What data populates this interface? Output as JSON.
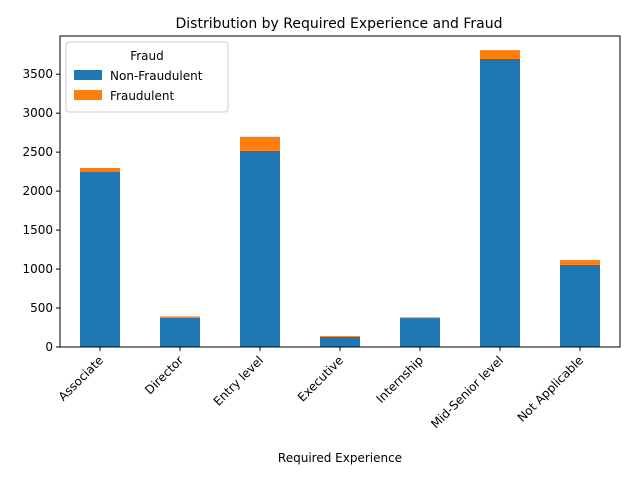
{
  "chart_data": {
    "type": "bar",
    "stacked": true,
    "title": "Distribution by Required Experience and Fraud",
    "xlabel": "Required Experience",
    "ylabel": "",
    "categories": [
      "Associate",
      "Director",
      "Entry level",
      "Executive",
      "Internship",
      "Mid-Senior level",
      "Not Applicable"
    ],
    "series": [
      {
        "name": "Non-Fraudulent",
        "color": "#1f77b4",
        "values": [
          2245,
          375,
          2518,
          131,
          371,
          3695,
          1055
        ]
      },
      {
        "name": "Fraudulent",
        "color": "#ff7f0e",
        "values": [
          52,
          17,
          179,
          10,
          10,
          114,
          60
        ]
      }
    ],
    "ylim": [
      0,
      3990
    ],
    "yticks": [
      0,
      500,
      1000,
      1500,
      2000,
      2500,
      3000,
      3500
    ],
    "grid": false,
    "legend": {
      "title": "Fraud",
      "placement": "top-left"
    }
  }
}
